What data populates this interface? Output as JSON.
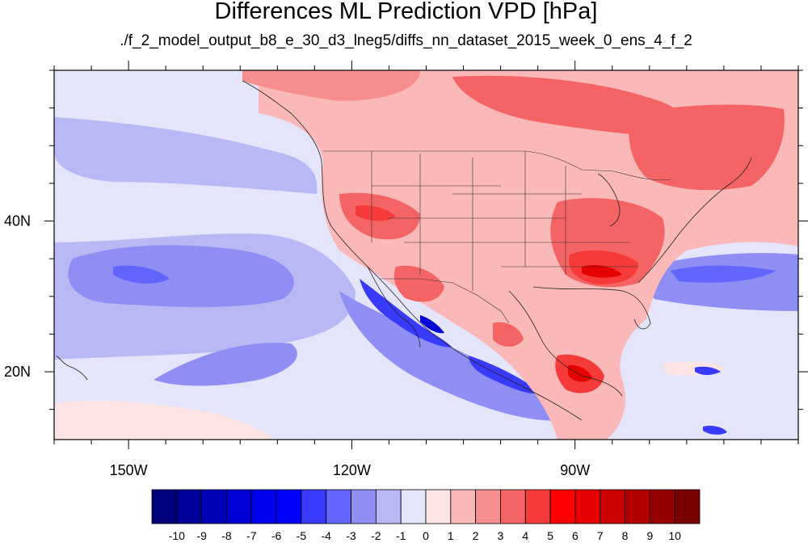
{
  "title": "Differences ML Prediction VPD [hPa]",
  "subtitle": "./f_2_model_output_b8_e_30_d3_lneg5/diffs_nn_dataset_2015_week_0_ens_4_f_2",
  "map": {
    "lon_range": [
      -160,
      -60
    ],
    "lat_range": [
      11,
      60
    ],
    "lon_ticks": [
      {
        "value": -150,
        "label": "150W"
      },
      {
        "value": -120,
        "label": "120W"
      },
      {
        "value": -90,
        "label": "90W"
      }
    ],
    "lat_ticks": [
      {
        "value": 40,
        "label": "40N"
      },
      {
        "value": 20,
        "label": "20N"
      }
    ],
    "minor_tick_step_deg": 5
  },
  "colorbar": {
    "levels": [
      "-10",
      "-9",
      "-8",
      "-7",
      "-6",
      "-5",
      "-4",
      "-3",
      "-2",
      "-1",
      "0",
      "1",
      "2",
      "3",
      "4",
      "5",
      "6",
      "7",
      "8",
      "9",
      "10"
    ],
    "colors": [
      "#00007a",
      "#00009a",
      "#0000b8",
      "#0000d6",
      "#0000ee",
      "#0000ff",
      "#3a3aff",
      "#6464ff",
      "#8e8ef5",
      "#b8b8f5",
      "#e4e4fb",
      "#fde4e4",
      "#fbb8b8",
      "#f78e8e",
      "#f56464",
      "#f53a3a",
      "#ff0000",
      "#e60000",
      "#cc0000",
      "#b20000",
      "#960000",
      "#7a0000"
    ]
  }
}
